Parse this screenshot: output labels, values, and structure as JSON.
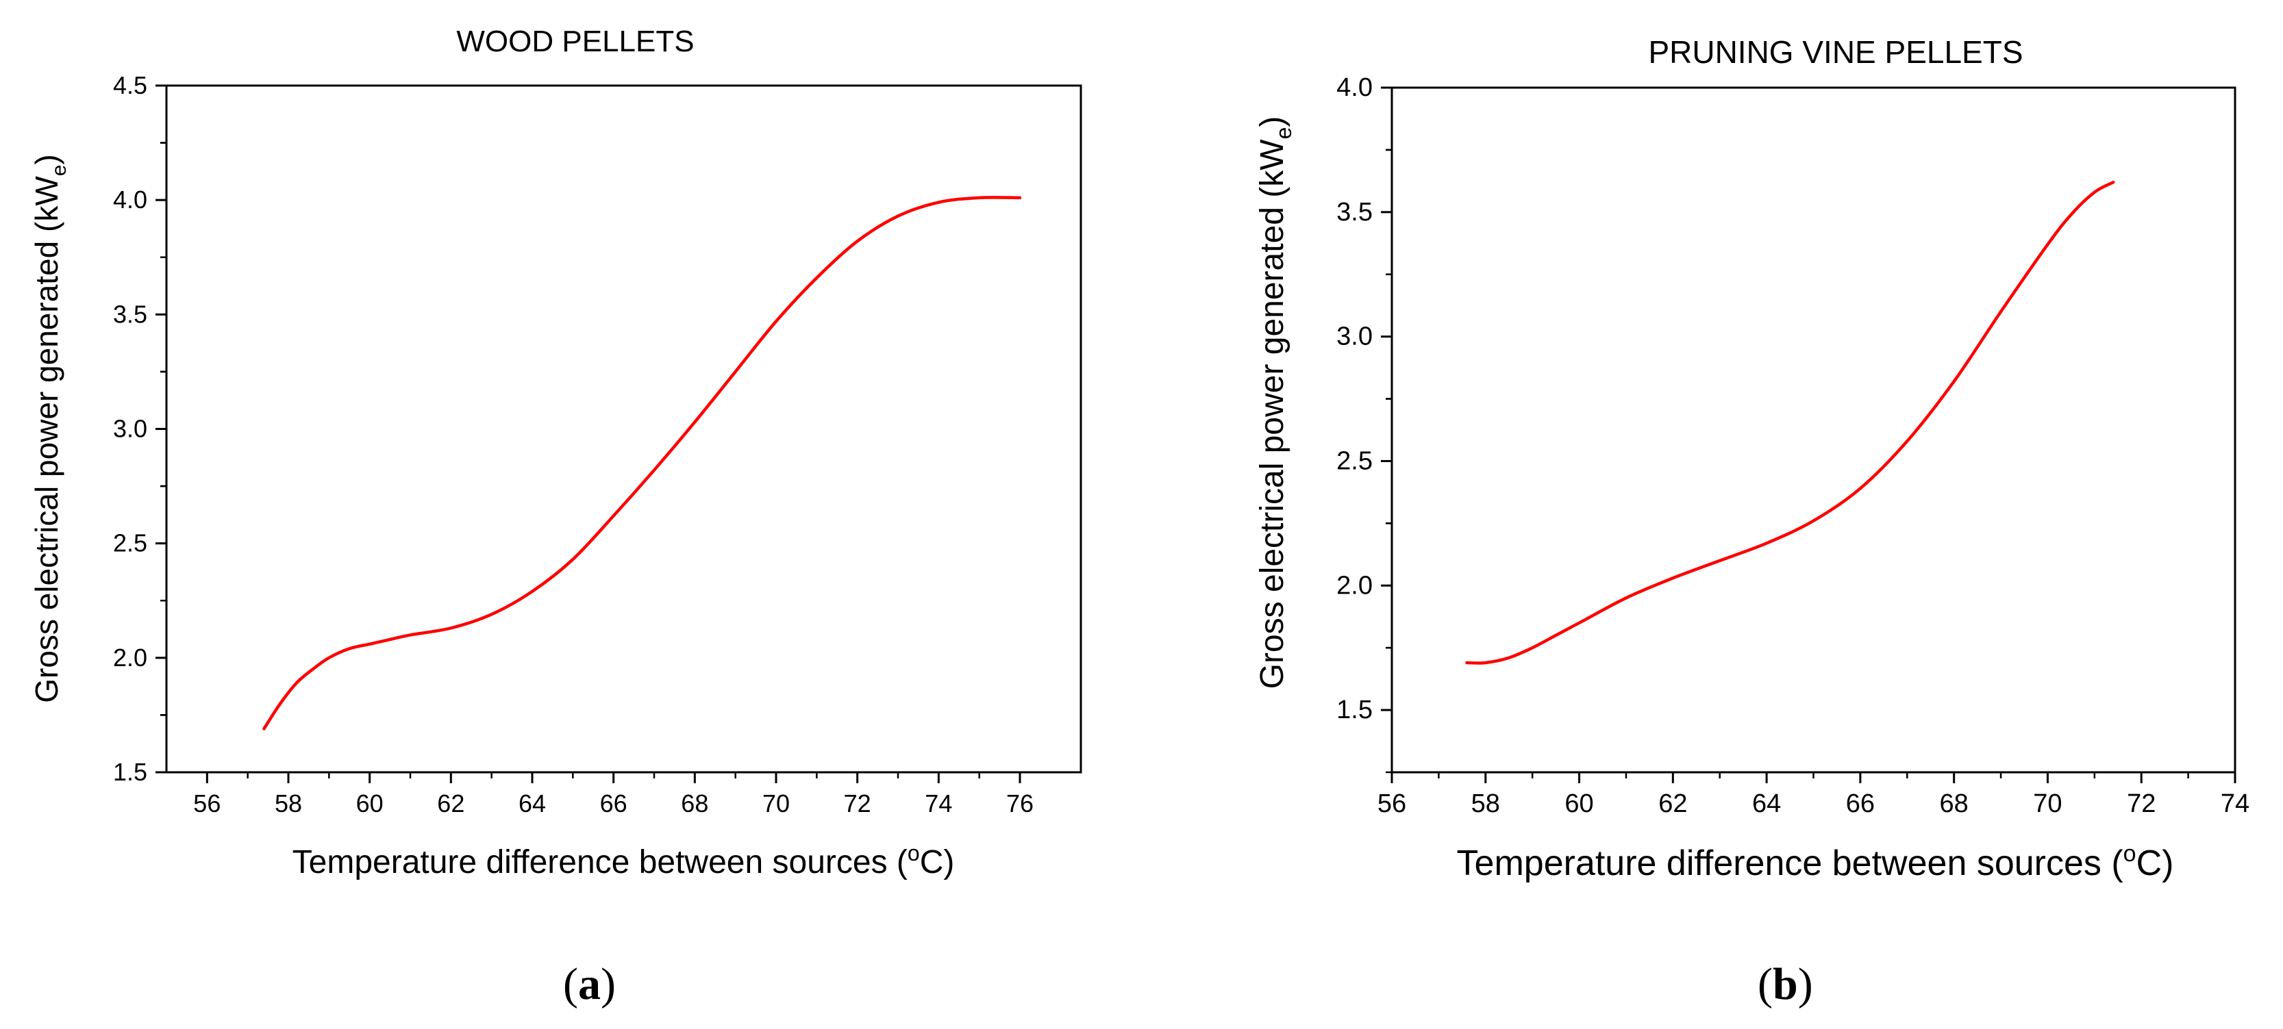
{
  "chart_data": [
    {
      "type": "line",
      "title": "WOOD PELLETS",
      "xlabel": "Temperature difference between sources (",
      "xlabel_unit_sup": "o",
      "xlabel_unit": "C)",
      "ylabel": "Gross electrical power generated (kW",
      "ylabel_sub": "e",
      "ylabel_end": ")",
      "xlim": [
        55,
        77.5
      ],
      "ylim": [
        1.5,
        4.5
      ],
      "xticks": [
        56,
        58,
        60,
        62,
        64,
        66,
        68,
        70,
        72,
        74,
        76
      ],
      "yticks": [
        1.5,
        2.0,
        2.5,
        3.0,
        3.5,
        4.0,
        4.5
      ],
      "ytick_labels": [
        "1.5",
        "2.0",
        "2.5",
        "3.0",
        "3.5",
        "4.0",
        "4.5"
      ],
      "line_color": "#ff0000",
      "series": [
        {
          "name": "Wood pellets",
          "x": [
            57.4,
            57.8,
            58.2,
            58.6,
            59.0,
            59.5,
            60.0,
            60.5,
            61.0,
            62.0,
            63.0,
            64.0,
            65.0,
            66.0,
            67.0,
            68.0,
            69.0,
            70.0,
            71.0,
            72.0,
            73.0,
            74.0,
            75.0,
            76.0
          ],
          "y": [
            1.69,
            1.8,
            1.89,
            1.95,
            2.0,
            2.04,
            2.06,
            2.08,
            2.1,
            2.13,
            2.19,
            2.29,
            2.43,
            2.62,
            2.82,
            3.03,
            3.25,
            3.47,
            3.66,
            3.82,
            3.93,
            3.99,
            4.01,
            4.01
          ]
        }
      ],
      "panel": "(a)",
      "panel_letter": "a"
    },
    {
      "type": "line",
      "title": "PRUNING VINE PELLETS",
      "xlabel": "Temperature difference between sources (",
      "xlabel_unit_sup": "o",
      "xlabel_unit": "C)",
      "ylabel": "Gross electrical power generated (kW",
      "ylabel_sub": "e",
      "ylabel_end": ")",
      "xlim": [
        56,
        74
      ],
      "ylim": [
        1.25,
        4.0
      ],
      "xticks": [
        56,
        58,
        60,
        62,
        64,
        66,
        68,
        70,
        72,
        74
      ],
      "yticks": [
        1.5,
        2.0,
        2.5,
        3.0,
        3.5,
        4.0
      ],
      "ytick_labels": [
        "1.5",
        "2.0",
        "2.5",
        "3.0",
        "3.5",
        "4.0"
      ],
      "line_color": "#ff0000",
      "series": [
        {
          "name": "Pruning vine pellets",
          "x": [
            57.6,
            58.0,
            58.5,
            59.0,
            59.5,
            60.0,
            61.0,
            62.0,
            63.0,
            64.0,
            65.0,
            66.0,
            67.0,
            68.0,
            69.0,
            70.0,
            70.5,
            71.0,
            71.4
          ],
          "y": [
            1.69,
            1.69,
            1.71,
            1.75,
            1.8,
            1.85,
            1.95,
            2.03,
            2.1,
            2.17,
            2.26,
            2.39,
            2.58,
            2.82,
            3.1,
            3.37,
            3.49,
            3.58,
            3.62
          ]
        }
      ],
      "panel": "(b)",
      "panel_letter": "b"
    }
  ]
}
